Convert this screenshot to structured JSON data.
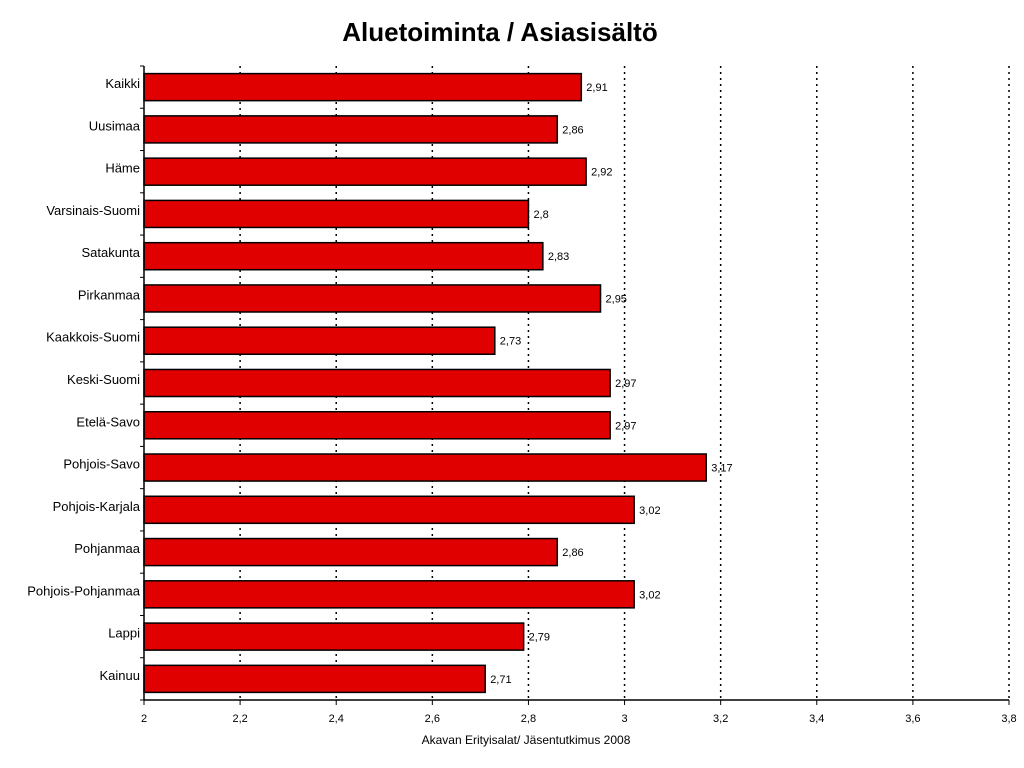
{
  "chart_data": {
    "type": "bar",
    "orientation": "horizontal",
    "title": "Aluetoiminta / Asiasisältö",
    "xlabel": "Akavan Erityisalat/ Jäsentutkimus 2008",
    "categories": [
      "Kaikki",
      "Uusimaa",
      "Häme",
      "Varsinais-Suomi",
      "Satakunta",
      "Pirkanmaa",
      "Kaakkois-Suomi",
      "Keski-Suomi",
      "Etelä-Savo",
      "Pohjois-Savo",
      "Pohjois-Karjala",
      "Pohjanmaa",
      "Pohjois-Pohjanmaa",
      "Lappi",
      "Kainuu"
    ],
    "values": [
      2.91,
      2.86,
      2.92,
      2.8,
      2.83,
      2.95,
      2.73,
      2.97,
      2.97,
      3.17,
      3.02,
      2.86,
      3.02,
      2.79,
      2.71
    ],
    "value_labels": [
      "2,91",
      "2,86",
      "2,92",
      "2,8",
      "2,83",
      "2,95",
      "2,73",
      "2,97",
      "2,97",
      "3,17",
      "3,02",
      "2,86",
      "3,02",
      "2,79",
      "2,71"
    ],
    "xlim": [
      2,
      3.8
    ],
    "xticks": [
      2,
      2.2,
      2.4,
      2.6,
      2.8,
      3,
      3.2,
      3.4,
      3.6,
      3.8
    ],
    "xtick_labels": [
      "2",
      "2,2",
      "2,4",
      "2,6",
      "2,8",
      "3",
      "3,2",
      "3,4",
      "3,6",
      "3,8"
    ],
    "grid": "vertical dotted",
    "legend": "none",
    "bar_color": "#e00000",
    "bar_border_color": "#000000"
  }
}
